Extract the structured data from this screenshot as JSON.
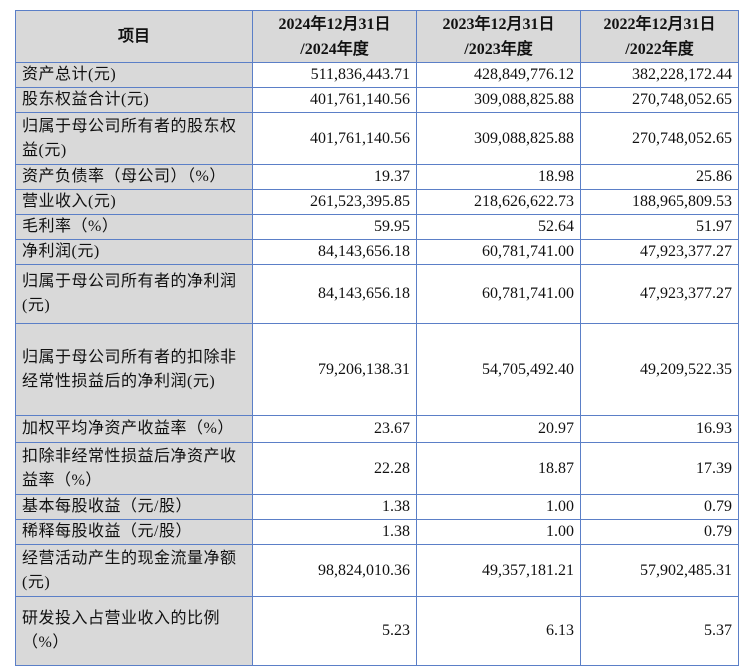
{
  "table": {
    "headers": [
      "项目",
      "2024年12月31日\n/2024年度",
      "2023年12月31日\n/2023年度",
      "2022年12月31日\n/2022年度"
    ],
    "header_lines": [
      [
        "项目"
      ],
      [
        "2024年12月31日",
        "/2024年度"
      ],
      [
        "2023年12月31日",
        "/2023年度"
      ],
      [
        "2022年12月31日",
        "/2022年度"
      ]
    ],
    "rows": [
      {
        "label": "资产总计(元)",
        "values": [
          "511,836,443.71",
          "428,849,776.12",
          "382,228,172.44"
        ]
      },
      {
        "label": "股东权益合计(元)",
        "values": [
          "401,761,140.56",
          "309,088,825.88",
          "270,748,052.65"
        ]
      },
      {
        "label": "归属于母公司所有者的股东权益(元)",
        "values": [
          "401,761,140.56",
          "309,088,825.88",
          "270,748,052.65"
        ]
      },
      {
        "label": "资产负债率（母公司）（%）",
        "values": [
          "19.37",
          "18.98",
          "25.86"
        ]
      },
      {
        "label": "营业收入(元)",
        "values": [
          "261,523,395.85",
          "218,626,622.73",
          "188,965,809.53"
        ]
      },
      {
        "label": "毛利率（%）",
        "values": [
          "59.95",
          "52.64",
          "51.97"
        ]
      },
      {
        "label": "净利润(元)",
        "values": [
          "84,143,656.18",
          "60,781,741.00",
          "47,923,377.27"
        ]
      },
      {
        "label": "归属于母公司所有者的净利润(元)",
        "values": [
          "84,143,656.18",
          "60,781,741.00",
          "47,923,377.27"
        ]
      },
      {
        "label": "归属于母公司所有者的扣除非经常性损益后的净利润(元)",
        "values": [
          "79,206,138.31",
          "54,705,492.40",
          "49,209,522.35"
        ]
      },
      {
        "label": "加权平均净资产收益率（%）",
        "values": [
          "23.67",
          "20.97",
          "16.93"
        ]
      },
      {
        "label": "扣除非经常性损益后净资产收益率（%）",
        "values": [
          "22.28",
          "18.87",
          "17.39"
        ]
      },
      {
        "label": "基本每股收益（元/股）",
        "values": [
          "1.38",
          "1.00",
          "0.79"
        ]
      },
      {
        "label": "稀释每股收益（元/股）",
        "values": [
          "1.38",
          "1.00",
          "0.79"
        ]
      },
      {
        "label": "经营活动产生的现金流量净额(元)",
        "values": [
          "98,824,010.36",
          "49,357,181.21",
          "57,902,485.31"
        ]
      },
      {
        "label": "研发投入占营业收入的比例（%）",
        "values": [
          "5.23",
          "6.13",
          "5.37"
        ]
      }
    ]
  }
}
